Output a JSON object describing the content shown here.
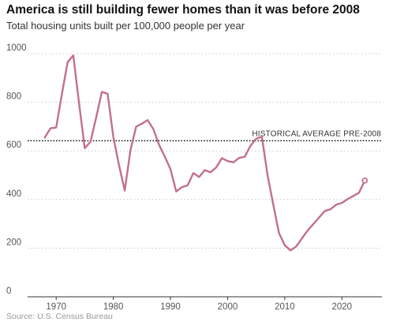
{
  "title": "America is still building fewer homes than it was before 2008",
  "subtitle": "Total housing units built per 100,000 people per year",
  "source": "Source: U.S. Census Bureau",
  "chart_data": {
    "type": "line",
    "title": "America is still building fewer homes than it was before 2008",
    "subtitle": "Total housing units built per 100,000 people per year",
    "xlabel": "",
    "ylabel": "",
    "xlim": [
      1965,
      2027
    ],
    "ylim": [
      0,
      1000
    ],
    "x_ticks": [
      1970,
      1980,
      1990,
      2000,
      2010,
      2020
    ],
    "y_ticks": [
      0,
      200,
      400,
      600,
      800,
      1000
    ],
    "grid": "horizontal dotted",
    "line_color": "#c27189",
    "reference_color": "#000000",
    "reference_line": {
      "label": "HISTORICAL AVERAGE PRE-2008",
      "value": 642
    },
    "series": [
      {
        "x": [
          1968,
          1969,
          1970,
          1971,
          1972,
          1973,
          1974,
          1975,
          1976,
          1977,
          1978,
          1979,
          1980,
          1981,
          1982,
          1983,
          1984,
          1985,
          1986,
          1987,
          1988,
          1989,
          1990,
          1991,
          1992,
          1993,
          1994,
          1995,
          1996,
          1997,
          1998,
          1999,
          2000,
          2001,
          2002,
          2003,
          2004,
          2005,
          2006,
          2007,
          2008,
          2009,
          2010,
          2011,
          2012,
          2013,
          2014,
          2015,
          2016,
          2017,
          2018,
          2019,
          2020,
          2021,
          2022,
          2023,
          2024
        ],
        "y": [
          655,
          693,
          696,
          835,
          965,
          993,
          796,
          611,
          638,
          738,
          843,
          835,
          658,
          540,
          437,
          605,
          700,
          712,
          727,
          690,
          625,
          577,
          525,
          433,
          451,
          458,
          509,
          493,
          521,
          512,
          532,
          570,
          558,
          553,
          571,
          576,
          621,
          650,
          658,
          498,
          378,
          262,
          212,
          191,
          207,
          240,
          273,
          299,
          326,
          353,
          360,
          379,
          386,
          402,
          415,
          428,
          478
        ],
        "end_marker": true
      }
    ]
  }
}
